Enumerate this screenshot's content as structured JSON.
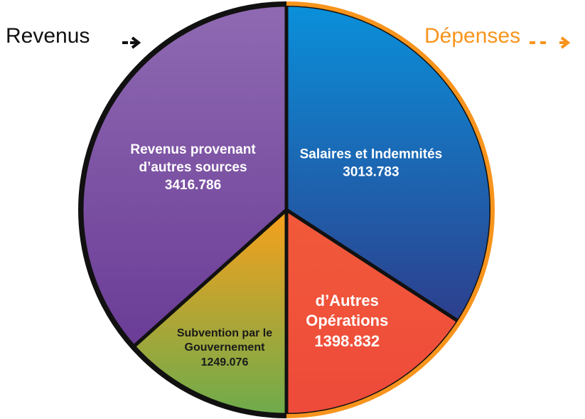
{
  "chart_data": {
    "type": "pie",
    "series": [
      {
        "name": "Revenus",
        "color": "#111111",
        "categories": [
          "Revenus provenant d’autres sources",
          "Subvention par le Gouvernement"
        ],
        "values": [
          3416.786,
          1249.076
        ],
        "colors": [
          [
            "#8f6ab2",
            "#6a3c96"
          ],
          [
            "#f8a01c",
            "#6eab4c"
          ]
        ]
      },
      {
        "name": "Dépenses",
        "color": "#f7941d",
        "categories": [
          "Salaires et Indemnités",
          "d’Autres Opérations"
        ],
        "values": [
          3013.783,
          1398.832
        ],
        "colors": [
          [
            "#0a90da",
            "#2d3f8d"
          ],
          [
            "#f15a3a",
            "#ee4a3a"
          ]
        ]
      }
    ]
  }
}
